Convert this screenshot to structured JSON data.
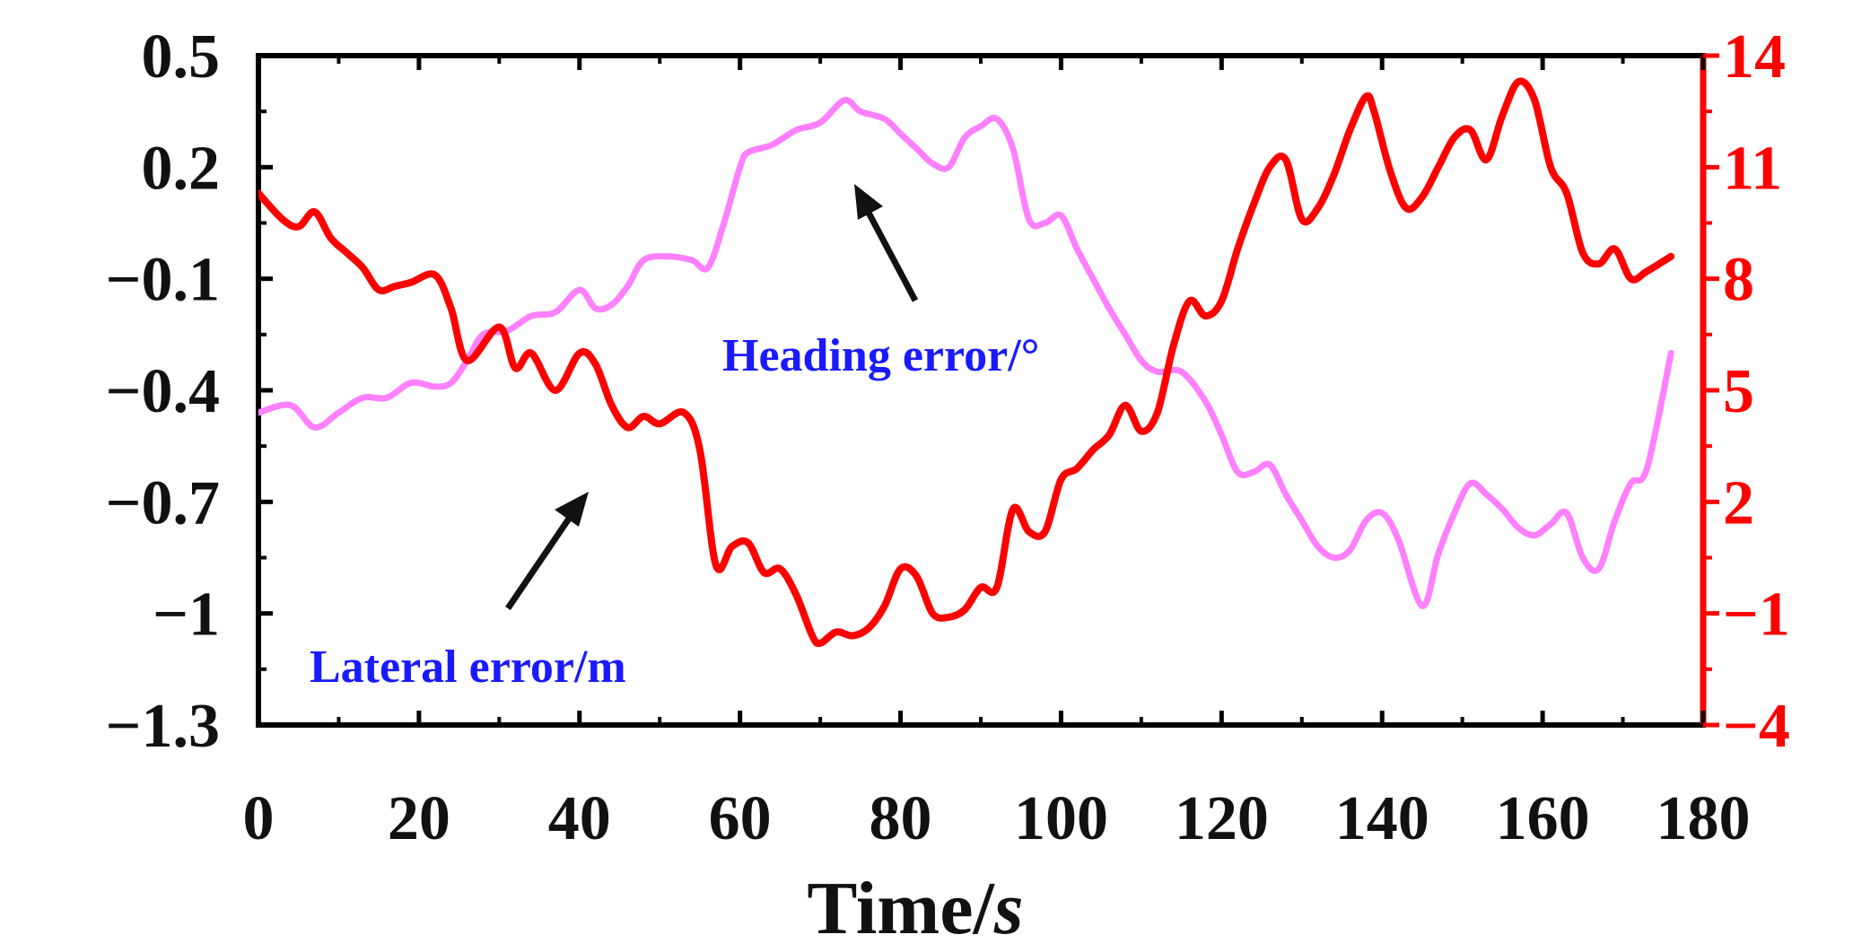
{
  "chart_data": {
    "type": "line",
    "xlabel": "Time/s",
    "xlabel_main": "Time/",
    "xlabel_unit": "s",
    "xlim": [
      0,
      180
    ],
    "x_ticks": [
      "0",
      "20",
      "40",
      "60",
      "80",
      "100",
      "120",
      "140",
      "160",
      "180"
    ],
    "y_left": {
      "lim": [
        -1.3,
        0.5
      ],
      "ticks": [
        "0.5",
        "0.2",
        "−0.1",
        "−0.4",
        "−0.7",
        "−1",
        "−1.3"
      ]
    },
    "y_right": {
      "lim": [
        -4,
        14
      ],
      "ticks": [
        "14",
        "11",
        "8",
        "5",
        "2",
        "−1",
        "−4"
      ],
      "color": "#ff0000"
    },
    "series": [
      {
        "axis": "right",
        "color": "#ff0000",
        "x": [
          0,
          3,
          5,
          7,
          9,
          11,
          13,
          15,
          17,
          19,
          22,
          24,
          26,
          30,
          32,
          34,
          37,
          40,
          42,
          44,
          46,
          48,
          50,
          53,
          55,
          57,
          59,
          61,
          63,
          65,
          67,
          69,
          70,
          72,
          74,
          76,
          78,
          80,
          82,
          84,
          86,
          88,
          90,
          92,
          94,
          96,
          98,
          100,
          102,
          104,
          106,
          108,
          110,
          112,
          114,
          116,
          118,
          120,
          122,
          124,
          126,
          128,
          130,
          132,
          134,
          136,
          138,
          139,
          141,
          143,
          145,
          147,
          149,
          151,
          153,
          155,
          157,
          159,
          161,
          163,
          165,
          167,
          169,
          171,
          173,
          176
        ],
        "values": [
          10.3,
          9.6,
          9.4,
          9.8,
          9.1,
          8.7,
          8.3,
          7.7,
          7.8,
          7.9,
          8.1,
          7.2,
          5.8,
          6.7,
          5.6,
          6.0,
          5.0,
          6.0,
          5.7,
          4.6,
          4.0,
          4.3,
          4.1,
          4.4,
          3.4,
          0.3,
          0.8,
          0.9,
          0.1,
          0.2,
          -0.5,
          -1.6,
          -1.8,
          -1.5,
          -1.6,
          -1.4,
          -0.8,
          0.2,
          0.0,
          -1.0,
          -1.1,
          -0.9,
          -0.3,
          -0.3,
          1.8,
          1.2,
          1.2,
          2.6,
          2.9,
          3.4,
          3.8,
          4.6,
          3.9,
          4.4,
          6.2,
          7.4,
          7.0,
          7.4,
          8.8,
          10.0,
          11.0,
          11.2,
          9.6,
          9.9,
          10.8,
          12.0,
          12.9,
          12.5,
          10.9,
          9.9,
          10.2,
          11.0,
          11.8,
          12.0,
          11.2,
          12.4,
          13.3,
          12.8,
          11.0,
          10.3,
          8.7,
          8.4,
          8.8,
          8.0,
          8.2,
          8.6
        ]
      },
      {
        "axis": "left",
        "color": "#ff80ff",
        "x": [
          0,
          4,
          7,
          10,
          13,
          16,
          19,
          22,
          24,
          26,
          28,
          31,
          34,
          37,
          40,
          42,
          44,
          46,
          48,
          51,
          54,
          56,
          58,
          60,
          61,
          64,
          67,
          70,
          73,
          75,
          78,
          80,
          82,
          84,
          86,
          88,
          90,
          92,
          94,
          96,
          98,
          100,
          102,
          104,
          106,
          108,
          110,
          112,
          115,
          118,
          120,
          122,
          124,
          126,
          128,
          130,
          132,
          134,
          136,
          138,
          140,
          142,
          145,
          147,
          149,
          151,
          153,
          155,
          157,
          159,
          161,
          163,
          165,
          167,
          169,
          171,
          173,
          176
        ],
        "values": [
          -0.46,
          -0.44,
          -0.5,
          -0.46,
          -0.42,
          -0.42,
          -0.38,
          -0.39,
          -0.38,
          -0.32,
          -0.25,
          -0.24,
          -0.2,
          -0.19,
          -0.13,
          -0.18,
          -0.17,
          -0.12,
          -0.05,
          -0.04,
          -0.05,
          -0.07,
          0.05,
          0.2,
          0.24,
          0.26,
          0.3,
          0.32,
          0.38,
          0.35,
          0.33,
          0.29,
          0.25,
          0.21,
          0.2,
          0.28,
          0.31,
          0.33,
          0.25,
          0.06,
          0.05,
          0.07,
          -0.02,
          -0.1,
          -0.18,
          -0.25,
          -0.32,
          -0.35,
          -0.35,
          -0.43,
          -0.52,
          -0.62,
          -0.62,
          -0.6,
          -0.68,
          -0.75,
          -0.82,
          -0.85,
          -0.83,
          -0.75,
          -0.73,
          -0.8,
          -0.98,
          -0.84,
          -0.73,
          -0.65,
          -0.68,
          -0.72,
          -0.77,
          -0.79,
          -0.76,
          -0.73,
          -0.85,
          -0.88,
          -0.75,
          -0.65,
          -0.61,
          -0.3
        ]
      }
    ],
    "annotations": [
      {
        "text": "Heading error/°",
        "color": "#ff44ff"
      },
      {
        "text": "Lateral error/m",
        "color": "#ff44ff"
      }
    ],
    "grid": false,
    "legend": "none"
  }
}
